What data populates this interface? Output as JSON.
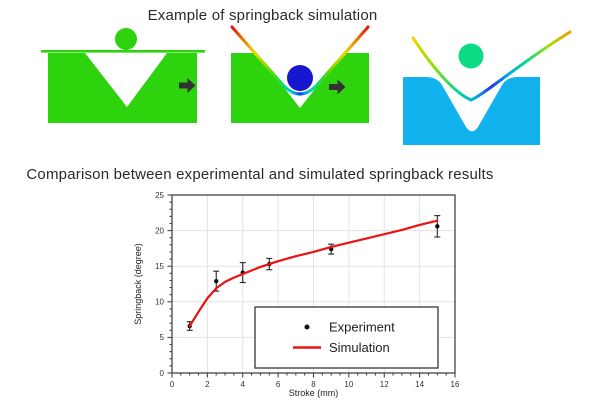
{
  "sim_example": {
    "title": "Example of springback simulation",
    "colors": {
      "die_green": "#2DD40D",
      "die_cyan": "#12B2EE",
      "ball_initial": "#2DD40D",
      "ball_loaded": "#1717CF",
      "ball_springback": "#0BDB85",
      "sheet_initial": "#2DD40D",
      "arrow": "#333333"
    },
    "stages": [
      {
        "name": "initial-setup"
      },
      {
        "name": "loaded-bending"
      },
      {
        "name": "after-springback"
      }
    ]
  },
  "comparison": {
    "title": "Comparison between experimental and simulated springback results"
  },
  "chart_data": {
    "type": "line",
    "title": "",
    "xlabel": "Stroke (mm)",
    "ylabel": "Springback (degree)",
    "xlim": [
      0,
      16
    ],
    "ylim": [
      0,
      25
    ],
    "xticks": [
      0,
      2,
      4,
      6,
      8,
      10,
      12,
      14,
      16
    ],
    "yticks": [
      0,
      5,
      10,
      15,
      20,
      25
    ],
    "x_minor_step": 0.5,
    "y_minor_step": 1,
    "grid": true,
    "grid_color": "#e3e3e3",
    "legend_position": "lower-right",
    "series": [
      {
        "name": "Experiment",
        "type": "scatter",
        "color": "#111111",
        "x": [
          1,
          2.5,
          4,
          5.5,
          9,
          15
        ],
        "y": [
          6.6,
          12.9,
          14.1,
          15.3,
          17.4,
          20.6
        ],
        "yerr": [
          0.6,
          1.4,
          1.4,
          0.8,
          0.7,
          1.5
        ]
      },
      {
        "name": "Simulation",
        "type": "line",
        "color": "#EE1111",
        "x": [
          1,
          1.5,
          2,
          2.5,
          3,
          3.5,
          4,
          4.5,
          5,
          5.5,
          6,
          7,
          8,
          9,
          10,
          11,
          12,
          13,
          14,
          15
        ],
        "y": [
          6.6,
          8.6,
          10.5,
          11.9,
          12.8,
          13.4,
          13.9,
          14.4,
          14.9,
          15.3,
          15.7,
          16.4,
          17.0,
          17.7,
          18.3,
          18.9,
          19.5,
          20.1,
          20.8,
          21.4
        ]
      }
    ]
  }
}
